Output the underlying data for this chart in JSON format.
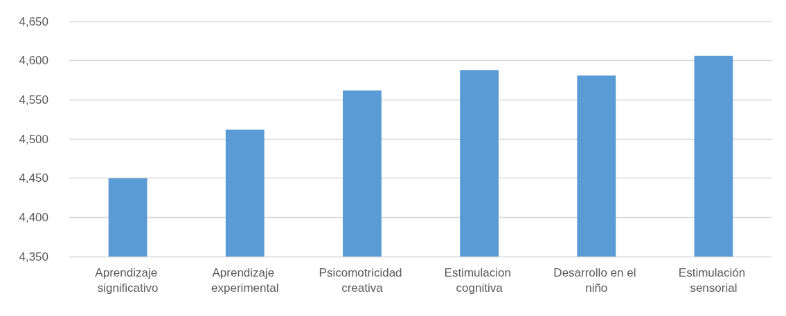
{
  "chart_data": {
    "type": "bar",
    "categories": [
      "Aprendizaje significativo",
      "Aprendizaje experimental",
      "Psicomotricidad creativa",
      "Estimulacion cognitiva",
      "Desarrollo en el niño",
      "Estimulación sensorial"
    ],
    "values": [
      4450,
      4512,
      4562,
      4588,
      4581,
      4606
    ],
    "color": "#5b9bd5",
    "ylim": [
      4350,
      4650
    ],
    "yticks": [
      {
        "value": 4350,
        "label": "4,350"
      },
      {
        "value": 4400,
        "label": "4,400"
      },
      {
        "value": 4450,
        "label": "4,450"
      },
      {
        "value": 4500,
        "label": "4,500"
      },
      {
        "value": 4550,
        "label": "4,550"
      },
      {
        "value": 4600,
        "label": "4,600"
      },
      {
        "value": 4650,
        "label": "4,650"
      }
    ],
    "grid": "y"
  }
}
